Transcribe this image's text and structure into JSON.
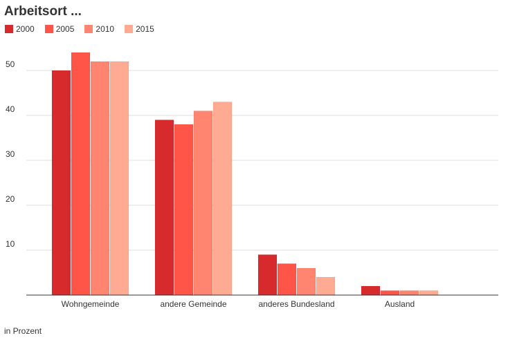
{
  "chart_data": {
    "type": "bar",
    "title": "Arbeitsort ...",
    "categories": [
      "Wohngemeinde",
      "andere Gemeinde",
      "anderes Bundesland",
      "Ausland"
    ],
    "series": [
      {
        "name": "2000",
        "color": "#d62a2d",
        "values": [
          50,
          39,
          9,
          2
        ]
      },
      {
        "name": "2005",
        "color": "#ff5548",
        "values": [
          54,
          38,
          7,
          1
        ]
      },
      {
        "name": "2010",
        "color": "#ff8570",
        "values": [
          52,
          41,
          6,
          1
        ]
      },
      {
        "name": "2015",
        "color": "#ffab93",
        "values": [
          52,
          43,
          4,
          1
        ]
      }
    ],
    "yticks": [
      10,
      20,
      30,
      40,
      50
    ],
    "ylim": [
      0,
      60
    ],
    "grid": true,
    "legend_position": "top-left",
    "note": "in Prozent"
  }
}
